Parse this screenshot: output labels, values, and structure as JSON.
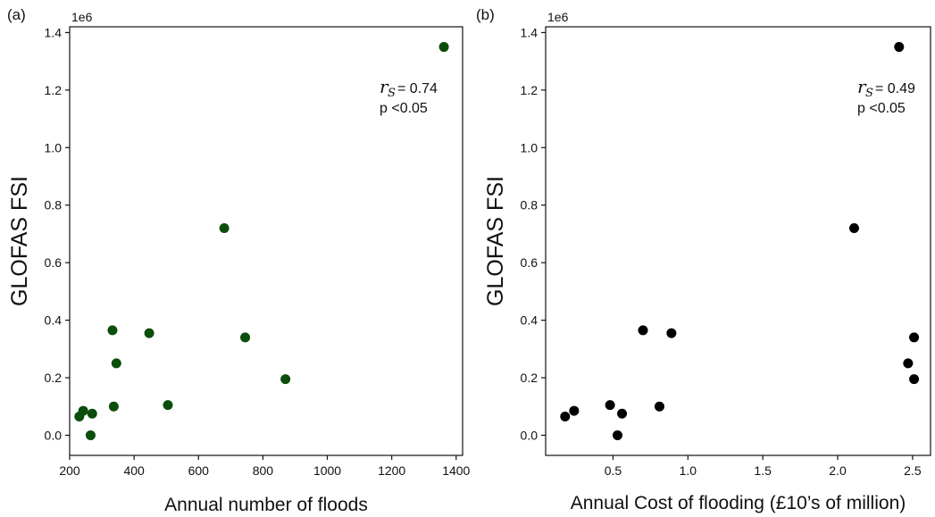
{
  "chart_data": [
    {
      "type": "scatter",
      "panel_label": "(a)",
      "xlabel": "Annual number of floods",
      "ylabel": "GLOFAS FSI",
      "y_multiplier": "1e6",
      "xlim": [
        200,
        1420
      ],
      "ylim": [
        -0.07,
        1.42
      ],
      "xticks": [
        200,
        400,
        600,
        800,
        1000,
        1200,
        1400
      ],
      "xtick_labels": [
        "200",
        "400",
        "600",
        "800",
        "1000",
        "1200",
        "1400"
      ],
      "yticks": [
        0.0,
        0.2,
        0.4,
        0.6,
        0.8,
        1.0,
        1.2,
        1.4
      ],
      "ytick_labels": [
        "0.0",
        "0.2",
        "0.4",
        "0.6",
        "0.8",
        "1.0",
        "1.2",
        "1.4"
      ],
      "marker_color": "#0b4d0b",
      "annotation": {
        "r_symbol": "r",
        "r_subscript": "S",
        "r_value": "= 0.74",
        "p_text": "p <0.05"
      },
      "x": [
        230,
        242,
        265,
        270,
        333,
        337,
        345,
        447,
        505,
        680,
        745,
        870,
        1362
      ],
      "y": [
        0.065,
        0.085,
        0.0,
        0.075,
        0.365,
        0.1,
        0.25,
        0.355,
        0.105,
        0.72,
        0.34,
        0.195,
        1.35
      ]
    },
    {
      "type": "scatter",
      "panel_label": "(b)",
      "xlabel": "Annual Cost of flooding (£10’s of million)",
      "ylabel": "GLOFAS FSI",
      "y_multiplier": "1e6",
      "xlim": [
        0.05,
        2.62
      ],
      "ylim": [
        -0.07,
        1.42
      ],
      "xticks": [
        0.5,
        1.0,
        1.5,
        2.0,
        2.5
      ],
      "xtick_labels": [
        "0.5",
        "1.0",
        "1.5",
        "2.0",
        "2.5"
      ],
      "yticks": [
        0.0,
        0.2,
        0.4,
        0.6,
        0.8,
        1.0,
        1.2,
        1.4
      ],
      "ytick_labels": [
        "0.0",
        "0.2",
        "0.4",
        "0.6",
        "0.8",
        "1.0",
        "1.2",
        "1.4"
      ],
      "marker_color": "#000000",
      "annotation": {
        "r_symbol": "r",
        "r_subscript": "S",
        "r_value": "= 0.49",
        "p_text": "p <0.05"
      },
      "x": [
        0.18,
        0.24,
        0.48,
        0.53,
        0.56,
        0.7,
        0.81,
        0.89,
        2.11,
        2.41,
        2.47,
        2.51,
        2.51
      ],
      "y": [
        0.065,
        0.085,
        0.105,
        0.0,
        0.075,
        0.365,
        0.1,
        0.355,
        0.72,
        1.35,
        0.25,
        0.34,
        0.195
      ]
    }
  ]
}
